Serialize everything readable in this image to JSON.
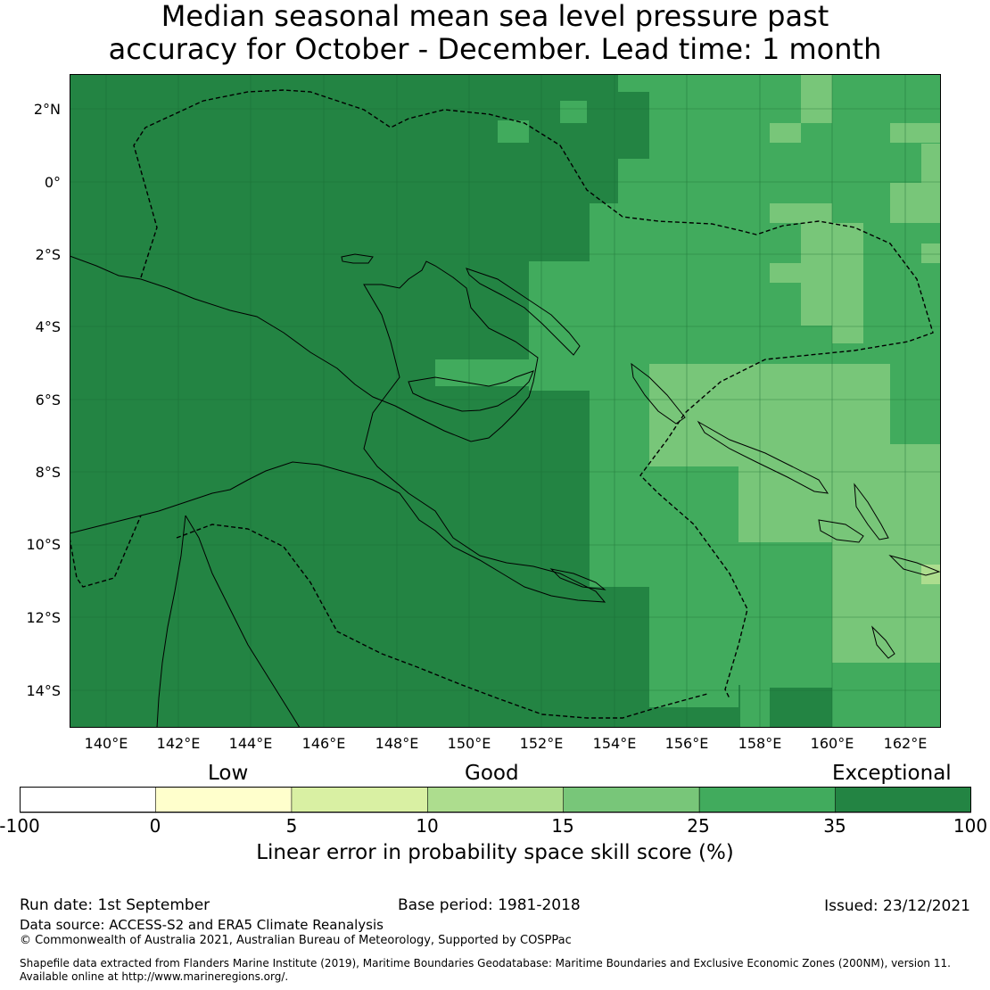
{
  "title_line1": "Median seasonal mean sea level pressure past",
  "title_line2": "accuracy for October - December. Lead time: 1 month",
  "map": {
    "lat_labels": [
      "2°N",
      "0°",
      "2°S",
      "4°S",
      "6°S",
      "8°S",
      "10°S",
      "12°S",
      "14°S"
    ],
    "lon_labels": [
      "140°E",
      "142°E",
      "144°E",
      "146°E",
      "148°E",
      "150°E",
      "152°E",
      "154°E",
      "156°E",
      "158°E",
      "160°E",
      "162°E"
    ],
    "colors": {
      "exceptional": "#238443",
      "c25_35": "#41ab5d",
      "c15_25": "#78c679",
      "c10_15": "#addd8e",
      "c5_10": "#d9f0a3",
      "c0_5": "#ffffcc",
      "neg": "#ffffff"
    }
  },
  "legend": {
    "categories": {
      "low": "Low",
      "good": "Good",
      "exceptional": "Exceptional"
    },
    "ticks": [
      "-100",
      "0",
      "5",
      "10",
      "15",
      "25",
      "35",
      "100"
    ],
    "colors": [
      "#ffffff",
      "#ffffcc",
      "#d9f0a3",
      "#addd8e",
      "#78c679",
      "#41ab5d",
      "#238443"
    ],
    "label": "Linear error in probability space skill score (%)"
  },
  "footer": {
    "run_date": "Run date: 1st September",
    "base_period": "Base period: 1981-2018",
    "issued": "Issued: 23/12/2021",
    "data_source": "Data source: ACCESS-S2 and ERA5 Climate Reanalysis",
    "copyright": "© Commonwealth of Australia 2021, Australian Bureau of Meteorology, Supported by COSPPac",
    "shapefile_line1": "Shapefile data extracted from Flanders Marine Institute (2019), Maritime Boundaries Geodatabase: Maritime Boundaries and Exclusive Economic Zones (200NM), version 11.",
    "shapefile_line2": "Available online at http://www.marineregions.org/."
  }
}
